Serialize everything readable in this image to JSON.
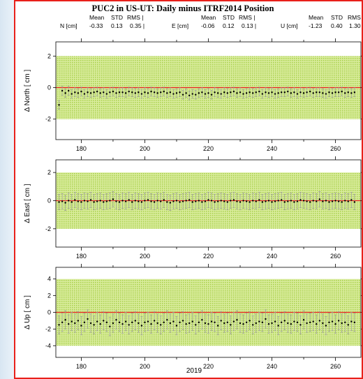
{
  "figure": {
    "title": "PUC2 in US-UT: Daily minus ITRF2014 Position",
    "stats_header": {
      "north": {
        "mean": "Mean",
        "std": "STD",
        "rms": "RMS |"
      },
      "east": {
        "mean": "Mean",
        "std": "STD",
        "rms": "RMS |"
      },
      "up": {
        "mean": "Mean",
        "std": "STD",
        "rms": "RMS"
      }
    },
    "stats_values": {
      "north": {
        "label": "N [cm]",
        "mean": "-0.33",
        "std": "0.13",
        "rms": "0.35 |"
      },
      "east": {
        "label": "E [cm]",
        "mean": "-0.06",
        "std": "0.12",
        "rms": "0.13 |"
      },
      "up": {
        "label": "U [cm]",
        "mean": "-1.23",
        "std": "0.40",
        "rms": "1.30"
      }
    },
    "xlabel": "2019",
    "colors": {
      "border": "#e8201a",
      "band": "#c8e27a",
      "zero_line": "#e8201a",
      "points": "#000000",
      "errorbar": "#9a9a9a"
    }
  },
  "chart_data": [
    {
      "type": "scatter",
      "ylabel": "Δ North  [ cm ]",
      "xlim": [
        172,
        268
      ],
      "ylim": [
        -3.3,
        2.9
      ],
      "yticks": [
        -2,
        0,
        2
      ],
      "xticks": [
        180,
        200,
        220,
        240,
        260
      ],
      "band": [
        -2,
        2
      ],
      "mean": -0.33,
      "error": 0.28,
      "series": [
        {
          "x": [
            173,
            174,
            175,
            176,
            177,
            178,
            179,
            180,
            181,
            182,
            183,
            184,
            185,
            186,
            187,
            188,
            189,
            190,
            191,
            192,
            193,
            194,
            195,
            196,
            197,
            198,
            199,
            200,
            201,
            202,
            203,
            204,
            205,
            206,
            207,
            208,
            209,
            210,
            211,
            212,
            213,
            214,
            215,
            216,
            217,
            218,
            219,
            220,
            221,
            222,
            223,
            224,
            225,
            226,
            227,
            228,
            229,
            230,
            231,
            232,
            233,
            234,
            235,
            236,
            237,
            238,
            239,
            240,
            241,
            242,
            243,
            244,
            245,
            246,
            247,
            248,
            249,
            250,
            251,
            252,
            253,
            254,
            255,
            256,
            257,
            258,
            259,
            260,
            261,
            262,
            263,
            264,
            265,
            266
          ],
          "y": [
            -1.1,
            -0.2,
            -0.35,
            -0.2,
            -0.4,
            -0.3,
            -0.35,
            -0.25,
            -0.4,
            -0.3,
            -0.35,
            -0.3,
            -0.25,
            -0.35,
            -0.3,
            -0.4,
            -0.3,
            -0.25,
            -0.35,
            -0.3,
            -0.3,
            -0.35,
            -0.25,
            -0.3,
            -0.35,
            -0.3,
            -0.4,
            -0.3,
            -0.35,
            -0.25,
            -0.3,
            -0.35,
            -0.3,
            -0.25,
            -0.35,
            -0.3,
            -0.4,
            -0.35,
            -0.3,
            -0.45,
            -0.35,
            -0.5,
            -0.4,
            -0.45,
            -0.35,
            -0.3,
            -0.4,
            -0.35,
            -0.45,
            -0.3,
            -0.35,
            -0.4,
            -0.3,
            -0.35,
            -0.3,
            -0.25,
            -0.35,
            -0.3,
            -0.4,
            -0.35,
            -0.3,
            -0.35,
            -0.3,
            -0.25,
            -0.4,
            -0.3,
            -0.35,
            -0.3,
            -0.4,
            -0.35,
            -0.3,
            -0.3,
            -0.25,
            -0.35,
            -0.3,
            -0.4,
            -0.3,
            -0.35,
            -0.3,
            -0.25,
            -0.35,
            -0.3,
            -0.3,
            -0.35,
            -0.4,
            -0.3,
            -0.35,
            -0.3,
            -0.3,
            -0.25,
            -0.35,
            -0.3,
            -0.35,
            -0.3
          ]
        }
      ]
    },
    {
      "type": "scatter",
      "ylabel": "Δ East  [ cm ]",
      "xlim": [
        172,
        268
      ],
      "ylim": [
        -3.3,
        2.9
      ],
      "yticks": [
        -2,
        0,
        2
      ],
      "xticks": [
        180,
        200,
        220,
        240,
        260
      ],
      "band": [
        -2,
        2
      ],
      "mean": -0.06,
      "error": 0.55,
      "series": [
        {
          "x": [
            173,
            174,
            175,
            176,
            177,
            178,
            179,
            180,
            181,
            182,
            183,
            184,
            185,
            186,
            187,
            188,
            189,
            190,
            191,
            192,
            193,
            194,
            195,
            196,
            197,
            198,
            199,
            200,
            201,
            202,
            203,
            204,
            205,
            206,
            207,
            208,
            209,
            210,
            211,
            212,
            213,
            214,
            215,
            216,
            217,
            218,
            219,
            220,
            221,
            222,
            223,
            224,
            225,
            226,
            227,
            228,
            229,
            230,
            231,
            232,
            233,
            234,
            235,
            236,
            237,
            238,
            239,
            240,
            241,
            242,
            243,
            244,
            245,
            246,
            247,
            248,
            249,
            250,
            251,
            252,
            253,
            254,
            255,
            256,
            257,
            258,
            259,
            260,
            261,
            262,
            263,
            264,
            265,
            266
          ],
          "y": [
            -0.1,
            -0.05,
            -0.15,
            0.0,
            -0.1,
            0.05,
            -0.05,
            -0.1,
            0.0,
            -0.05,
            0.05,
            -0.1,
            -0.05,
            0.0,
            -0.1,
            -0.05,
            0.0,
            0.1,
            -0.05,
            -0.1,
            0.0,
            -0.05,
            0.05,
            -0.1,
            0.0,
            -0.05,
            -0.1,
            0.0,
            0.05,
            -0.05,
            -0.1,
            0.0,
            -0.05,
            0.05,
            -0.1,
            -0.15,
            -0.05,
            0.0,
            -0.1,
            -0.05,
            0.0,
            0.05,
            -0.1,
            -0.05,
            0.0,
            -0.1,
            -0.05,
            0.05,
            0.0,
            -0.1,
            -0.05,
            0.0,
            -0.05,
            -0.1,
            0.0,
            0.05,
            -0.05,
            -0.1,
            0.0,
            -0.05,
            -0.1,
            0.0,
            -0.05,
            0.05,
            -0.1,
            -0.05,
            0.0,
            -0.1,
            -0.05,
            0.0,
            0.05,
            -0.1,
            -0.05,
            0.0,
            -0.1,
            -0.05,
            0.05,
            0.0,
            -0.05,
            -0.1,
            0.0,
            -0.05,
            0.1,
            -0.05,
            0.0,
            -0.1,
            -0.05,
            0.0,
            -0.05,
            -0.1,
            0.0,
            -0.05,
            0.05,
            -0.1
          ]
        }
      ]
    },
    {
      "type": "scatter",
      "ylabel": "Δ Up  [ cm ]",
      "xlim": [
        172,
        268
      ],
      "ylim": [
        -5.4,
        5.4
      ],
      "yticks": [
        -4,
        -2,
        0,
        2,
        4
      ],
      "xticks": [
        180,
        200,
        220,
        240,
        260
      ],
      "band": [
        -4,
        4
      ],
      "mean": -1.23,
      "error": 1.1,
      "series": [
        {
          "x": [
            173,
            174,
            175,
            176,
            177,
            178,
            179,
            180,
            181,
            182,
            183,
            184,
            185,
            186,
            187,
            188,
            189,
            190,
            191,
            192,
            193,
            194,
            195,
            196,
            197,
            198,
            199,
            200,
            201,
            202,
            203,
            204,
            205,
            206,
            207,
            208,
            209,
            210,
            211,
            212,
            213,
            214,
            215,
            216,
            217,
            218,
            219,
            220,
            221,
            222,
            223,
            224,
            225,
            226,
            227,
            228,
            229,
            230,
            231,
            232,
            233,
            234,
            235,
            236,
            237,
            238,
            239,
            240,
            241,
            242,
            243,
            244,
            245,
            246,
            247,
            248,
            249,
            250,
            251,
            252,
            253,
            254,
            255,
            256,
            257,
            258,
            259,
            260,
            261,
            262,
            263,
            264,
            265,
            266
          ],
          "y": [
            -1.5,
            -1.2,
            -0.9,
            -1.4,
            -1.1,
            -1.3,
            -1.0,
            -1.6,
            -1.2,
            -0.8,
            -1.3,
            -1.5,
            -1.1,
            -1.4,
            -1.0,
            -1.2,
            -1.7,
            -1.3,
            -0.9,
            -1.2,
            -1.4,
            -1.1,
            -1.5,
            -1.2,
            -1.0,
            -1.3,
            -1.6,
            -1.2,
            -1.1,
            -1.4,
            -1.0,
            -1.3,
            -1.5,
            -1.2,
            -0.9,
            -1.3,
            -1.1,
            -1.6,
            -1.2,
            -1.0,
            -1.4,
            -1.3,
            -1.1,
            -1.5,
            -1.2,
            -0.9,
            -1.3,
            -1.4,
            -1.1,
            -1.2,
            -1.6,
            -1.0,
            -1.3,
            -1.2,
            -1.5,
            -1.1,
            -0.9,
            -1.3,
            -1.4,
            -1.2,
            -1.0,
            -1.5,
            -1.3,
            -1.1,
            -1.2,
            -0.8,
            -1.4,
            -1.3,
            -1.1,
            -1.6,
            -1.2,
            -1.0,
            -1.3,
            -1.4,
            -1.1,
            -1.2,
            -1.5,
            -0.9,
            -1.3,
            -1.2,
            -1.1,
            -1.4,
            -1.0,
            -1.3,
            -1.6,
            -1.2,
            -1.1,
            -1.4,
            -1.0,
            -1.3,
            -1.2,
            -1.5,
            -1.1,
            -1.2
          ]
        }
      ]
    }
  ]
}
